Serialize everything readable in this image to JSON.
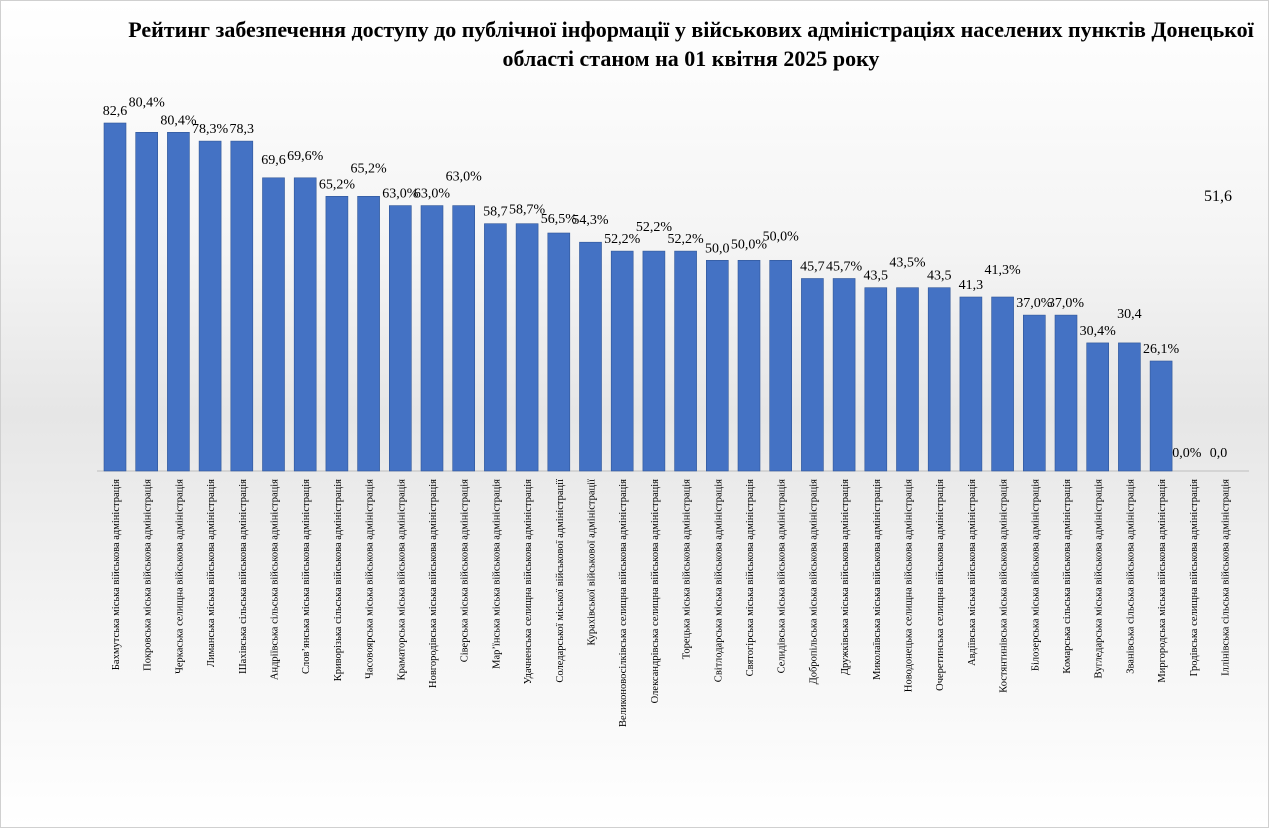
{
  "chart_data": {
    "type": "bar",
    "title": "Рейтинг забезпечення доступу до публічної інформації у військових адміністраціях  населених пунктів Донецької області станом на 01 квітня 2025 року",
    "xlabel": "",
    "ylabel": "",
    "ylim": [
      0,
      82.6
    ],
    "grid": false,
    "bar_color": "#4472C4",
    "categories": [
      "Бахмутська міська військова адміністрація",
      "Покровська міська  військова  адміністрація",
      "Черкаська селищна  військова адміністрація",
      "Лиманська  міська  військова адміністрація",
      "Шахівська сільська військова адміністрація",
      "Андріївська сільська військова адміністрація",
      "Слов’янська  міська військова адміністрація",
      "Криворізька сільська військова адміністрація",
      "Часовоярська міська військова адміністрація",
      "Краматорська міська військова адміністрація",
      "Новгородівська міська  військова адміністрація",
      "Сіверська міська військова адміністрація",
      "Мар’їнська міська військова адміністрація",
      "Удачненська  селищна  військова адміністрація",
      "Соледарської  міської  військової адміністрації",
      "Курахівської  військової адміністрації",
      "Великоновосілківська  селищна  військова адміністрація",
      "Олександрівська селищна  військова адміністрація",
      "Торецька міська військова адміністрація",
      "Світлодарська міська військова адміністрація",
      "Святогірська міська військова адміністрація",
      "Селидівська міська військова адміністрація",
      "Добропільська  міська військова адміністрація",
      "Дружківська міська військова адміністрація",
      "Миколаївська міська військова адміністрація",
      "Новодонецька селищна  військова адміністрація",
      "Очеретинська селищна  військова адміністрація",
      "Авдіївська міська військова адміністрація",
      "Костянтинівська  міська  військова адміністрація",
      "Білозерська міська військова адміністрація",
      "Комарська сільська військова адміністрація",
      "Вугледарська міська військова адміністрація",
      "Званівська сільська військова адміністрація",
      "Миргородська міська військова адміністрація",
      "Гродівська селищна  військова адміністрація",
      "Іллінівська сільська військова адміністрація"
    ],
    "values": [
      82.6,
      80.4,
      80.4,
      78.3,
      78.3,
      69.6,
      69.6,
      65.2,
      65.2,
      63.0,
      63.0,
      63.0,
      58.7,
      58.7,
      56.5,
      54.3,
      52.2,
      52.2,
      52.2,
      50.0,
      50.0,
      50.0,
      45.7,
      45.7,
      43.5,
      43.5,
      43.5,
      41.3,
      41.3,
      37.0,
      37.0,
      30.4,
      30.4,
      26.1,
      0.0,
      0.0
    ],
    "data_labels": [
      "82,6",
      "80,4%",
      "80,4%",
      "78,3%",
      "78,3",
      "69,6",
      "69,6%",
      "65,2%",
      "65,2%",
      "63,0%",
      "63,0%",
      "63,0%",
      "58,7",
      "58,7%",
      "56,5%",
      "54,3%",
      "52,2%",
      "52,2%",
      "52,2%",
      "50,0",
      "50,0%",
      "50,0%",
      "45,7",
      "45,7%",
      "43,5",
      "43,5%",
      "43,5",
      "41,3",
      "41,3%",
      "37,0%",
      "37,0%",
      "30,4%",
      "30,4",
      "26,1%",
      "0,0%",
      "0,0"
    ],
    "side_note": "51,6"
  }
}
